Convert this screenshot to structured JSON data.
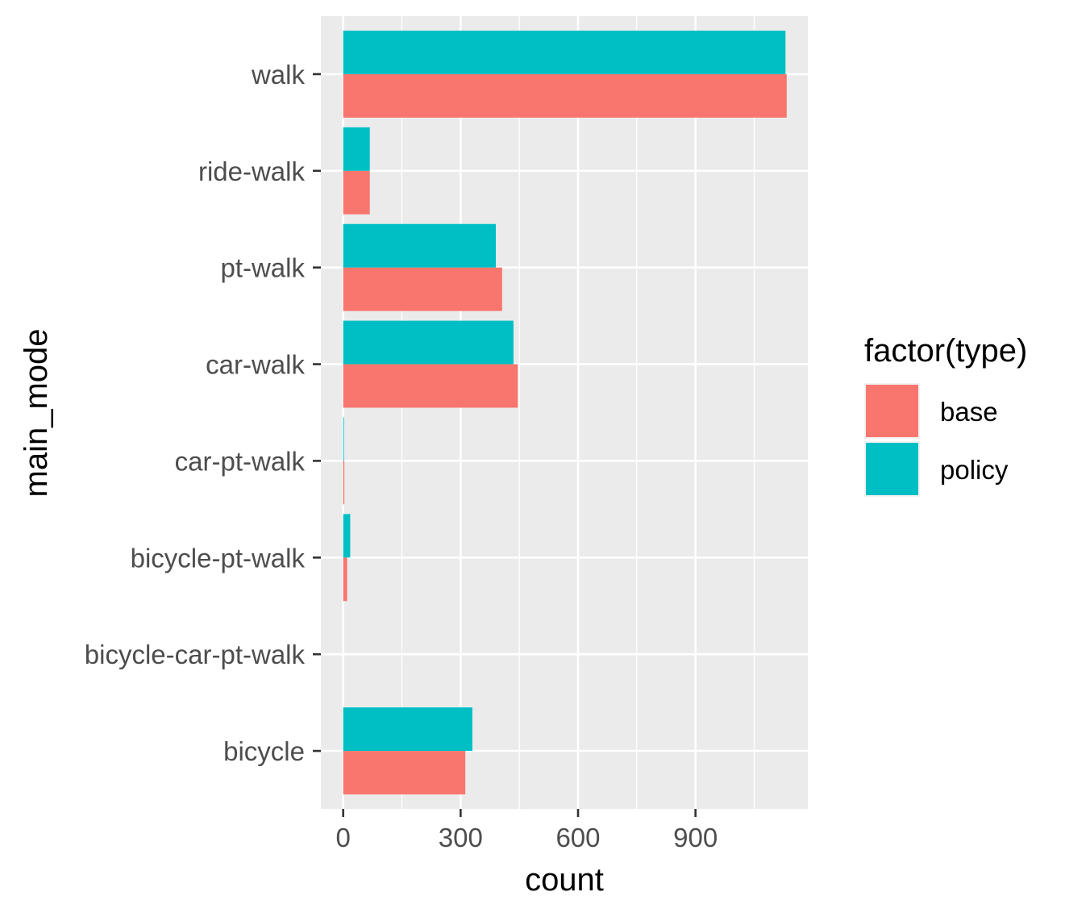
{
  "chart_data": {
    "type": "bar",
    "orientation": "horizontal",
    "position": "dodge",
    "categories": [
      "bicycle",
      "bicycle-car-pt-walk",
      "bicycle-pt-walk",
      "car-pt-walk",
      "car-walk",
      "pt-walk",
      "ride-walk",
      "walk"
    ],
    "series": [
      {
        "name": "base",
        "color": "#F8766D",
        "values": [
          312,
          0,
          10,
          3,
          446,
          406,
          68,
          1133
        ]
      },
      {
        "name": "policy",
        "color": "#00BFC4",
        "values": [
          330,
          0,
          18,
          2,
          435,
          390,
          68,
          1130
        ]
      }
    ],
    "xlabel": "count",
    "ylabel": "main_mode",
    "xlim": [
      -57,
      1187
    ],
    "x_ticks": [
      0,
      300,
      600,
      900
    ],
    "x_tick_labels": [
      "0",
      "300",
      "600",
      "900"
    ],
    "legend": {
      "title": "factor(type)",
      "placement": "right"
    },
    "grid": true
  }
}
